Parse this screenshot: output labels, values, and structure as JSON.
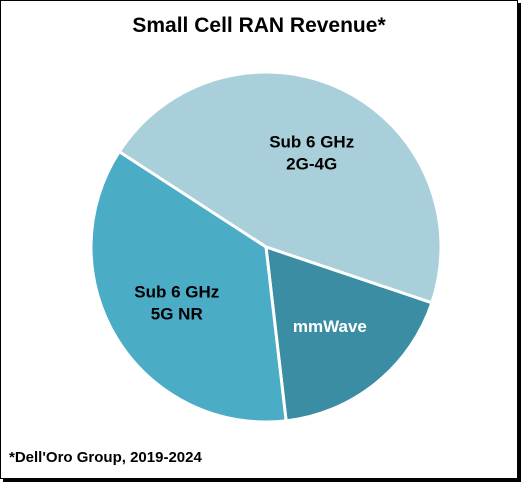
{
  "chart_data": {
    "type": "pie",
    "title": "Small Cell RAN Revenue*",
    "start_angle_deg": 213,
    "slices": [
      {
        "label_lines": [
          "Sub 6 GHz",
          "2G-4G"
        ],
        "value": 0.46,
        "color": "#a9cfdb",
        "label_color": "#000000"
      },
      {
        "label_lines": [
          "mmWave"
        ],
        "value": 0.18,
        "color": "#3b8da4",
        "label_color": "#ffffff"
      },
      {
        "label_lines": [
          "Sub 6 GHz",
          "5G NR"
        ],
        "value": 0.36,
        "color": "#4bacc6",
        "label_color": "#000000"
      }
    ]
  },
  "footnote": "*Dell'Oro Group, 2019-2024"
}
